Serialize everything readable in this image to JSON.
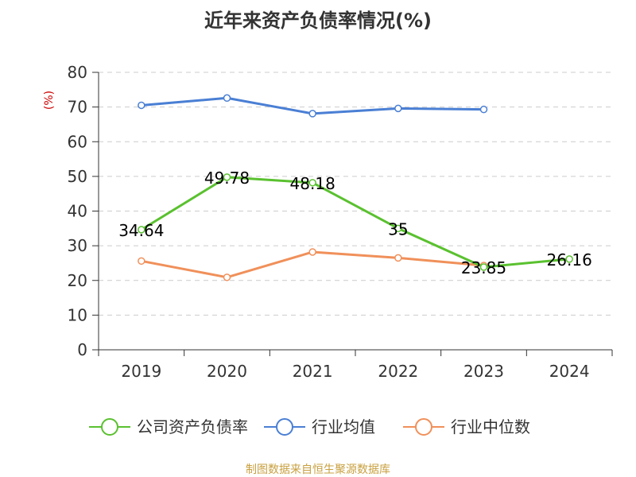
{
  "chart_data": {
    "type": "line",
    "title": "近年来资产负债率情况(%)",
    "ylabel": "(%)",
    "categories": [
      "2019",
      "2020",
      "2021",
      "2022",
      "2023",
      "2024"
    ],
    "ylim": [
      0,
      80
    ],
    "yticks": [
      0,
      10,
      20,
      30,
      40,
      50,
      60,
      70,
      80
    ],
    "grid": true,
    "legend_position": "bottom",
    "series": [
      {
        "name": "公司资产负债率",
        "color": "#5ac12f",
        "values": [
          34.64,
          49.78,
          48.18,
          35,
          23.85,
          26.16
        ],
        "labels": [
          "34.64",
          "49.78",
          "48.18",
          "35",
          "23.85",
          "26.16"
        ]
      },
      {
        "name": "行业均值",
        "color": "#4a7fd4",
        "values": [
          70.5,
          72.6,
          68.1,
          69.6,
          69.3,
          null
        ]
      },
      {
        "name": "行业中位数",
        "color": "#f0905a",
        "values": [
          25.6,
          20.9,
          28.2,
          26.5,
          24.3,
          null
        ]
      }
    ],
    "source": "制图数据来自恒生聚源数据库"
  }
}
